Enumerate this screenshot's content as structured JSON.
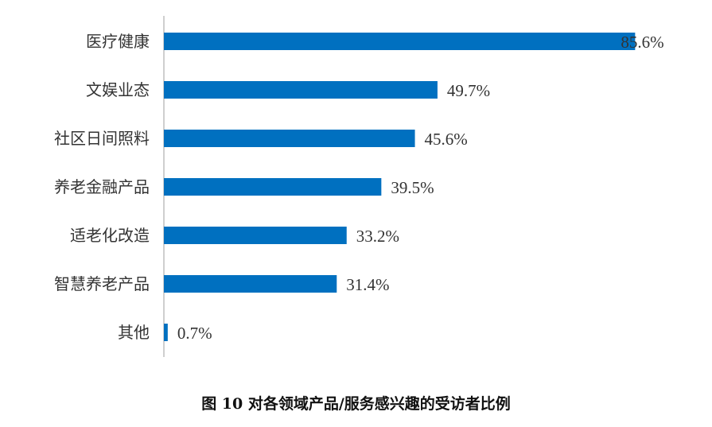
{
  "chart_data": {
    "type": "bar",
    "orientation": "horizontal",
    "title": "图 10 对各领域产品/服务感兴趣的受访者比例",
    "categories": [
      "医疗健康",
      "文娱业态",
      "社区日间照料",
      "养老金融产品",
      "适老化改造",
      "智慧养老产品",
      "其他"
    ],
    "values": [
      85.6,
      49.7,
      45.6,
      39.5,
      33.2,
      31.4,
      0.7
    ],
    "value_labels": [
      "85.6%",
      "49.7%",
      "45.6%",
      "39.5%",
      "33.2%",
      "31.4%",
      "0.7%"
    ],
    "unit": "%",
    "xlim": [
      0,
      100
    ],
    "grid": false,
    "legend": "none",
    "bar_color": "#0070C0",
    "axis_color": "#BFBFBF"
  }
}
